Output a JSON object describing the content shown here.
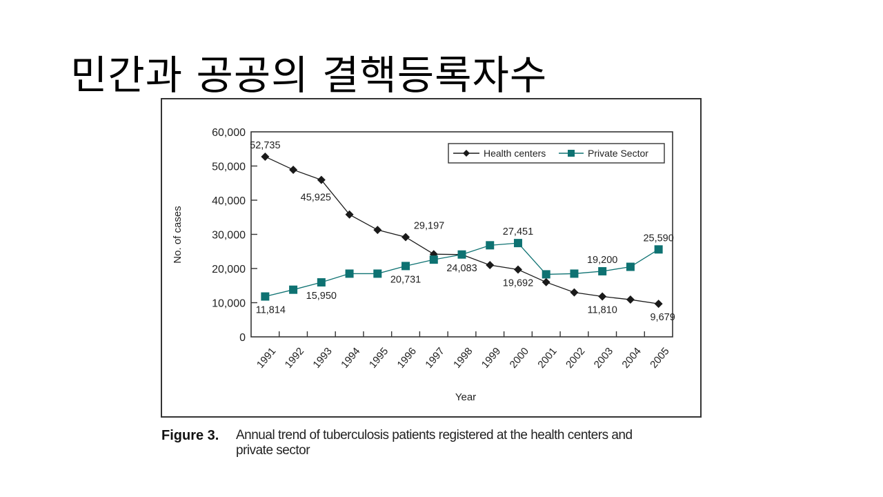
{
  "slide": {
    "title": "민간과 공공의 결핵등록자수"
  },
  "caption": {
    "label": "Figure 3.",
    "line1": "Annual trend of tuberculosis patients registered at the health centers and",
    "line2": "private sector"
  },
  "colors": {
    "health": "#1a1a1a",
    "private": "#0e7272",
    "axis": "#333333"
  },
  "chart_data": {
    "type": "line",
    "title": "",
    "xlabel": "Year",
    "ylabel": "No. of cases",
    "ylim": [
      0,
      60000
    ],
    "yticks": [
      0,
      10000,
      20000,
      30000,
      40000,
      50000,
      60000
    ],
    "ytick_labels": [
      "0",
      "10,000",
      "20,000",
      "30,000",
      "40,000",
      "50,000",
      "60,000"
    ],
    "categories": [
      "1991",
      "1992",
      "1993",
      "1994",
      "1995",
      "1996",
      "1997",
      "1998",
      "1999",
      "2000",
      "2001",
      "2002",
      "2003",
      "2004",
      "2005"
    ],
    "legend_position": "top-right",
    "grid": false,
    "series": [
      {
        "name": "Health centers",
        "marker": "diamond",
        "values": [
          52735,
          48900,
          45925,
          35800,
          31300,
          29197,
          24200,
          24083,
          21000,
          19692,
          16000,
          13000,
          11810,
          10900,
          9679
        ]
      },
      {
        "name": "Private Sector",
        "marker": "square",
        "values": [
          11814,
          13800,
          15950,
          18500,
          18500,
          20731,
          22600,
          24100,
          26800,
          27451,
          18300,
          18500,
          19200,
          20500,
          25590
        ]
      }
    ],
    "annotations": [
      {
        "text": "52,735",
        "series": 0,
        "index": 0,
        "pos": "above"
      },
      {
        "text": "45,925",
        "series": 0,
        "index": 2,
        "pos": "below-left"
      },
      {
        "text": "29,197",
        "series": 0,
        "index": 5,
        "pos": "above-left"
      },
      {
        "text": "24,083",
        "series": 0,
        "index": 7,
        "pos": "below"
      },
      {
        "text": "19,692",
        "series": 0,
        "index": 9,
        "pos": "below"
      },
      {
        "text": "11,810",
        "series": 0,
        "index": 12,
        "pos": "below"
      },
      {
        "text": "9,679",
        "series": 0,
        "index": 14,
        "pos": "below"
      },
      {
        "text": "11,814",
        "series": 1,
        "index": 0,
        "pos": "below"
      },
      {
        "text": "15,950",
        "series": 1,
        "index": 2,
        "pos": "below"
      },
      {
        "text": "20,731",
        "series": 1,
        "index": 5,
        "pos": "below"
      },
      {
        "text": "27,451",
        "series": 1,
        "index": 9,
        "pos": "above"
      },
      {
        "text": "19,200",
        "series": 1,
        "index": 12,
        "pos": "above"
      },
      {
        "text": "25,590",
        "series": 1,
        "index": 14,
        "pos": "above"
      }
    ]
  }
}
